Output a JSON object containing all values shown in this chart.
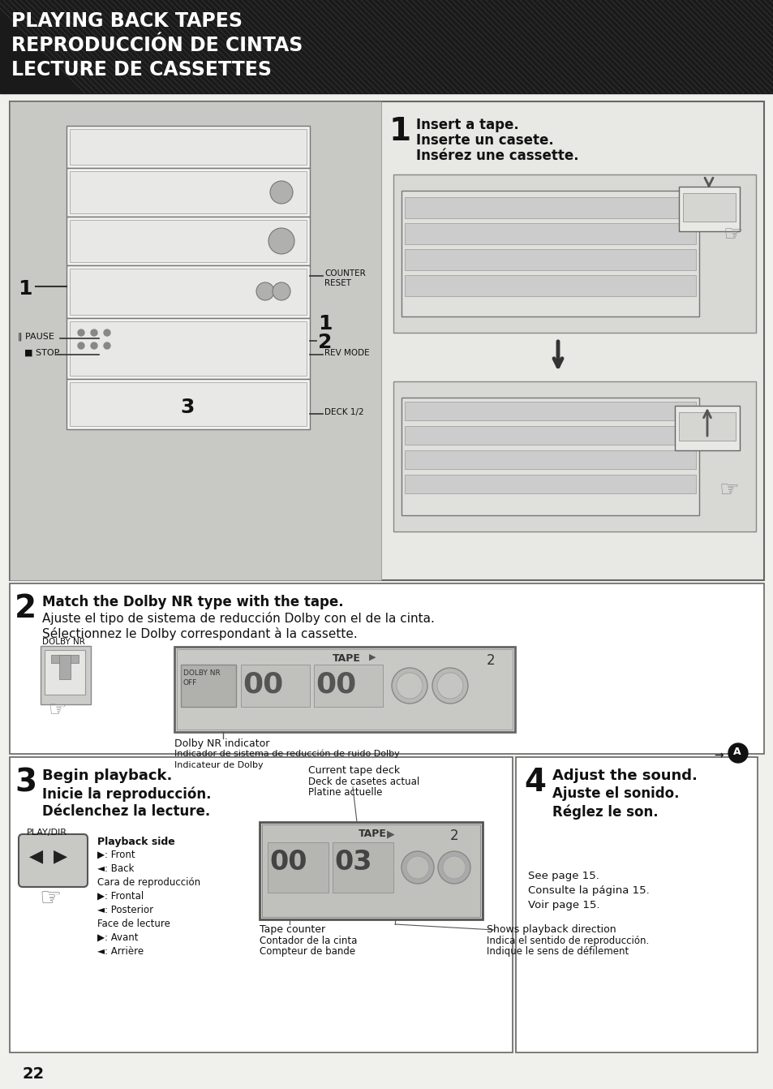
{
  "page_bg": "#f0f0ec",
  "header_bg": "#1a1a1a",
  "header_text_color": "#ffffff",
  "header_lines": [
    "PLAYING BACK TAPES",
    "REPRODUCCIÓN DE CINTAS",
    "LECTURE DE CASSETTES"
  ],
  "page_number": "22",
  "step1_title_line1": "Insert a tape.",
  "step1_title_line2": "Inserte un casete.",
  "step1_title_line3": "Insérez une cassette.",
  "step2_title": "Match the Dolby NR type with the tape.",
  "step2_line2": "Ajuste el tipo de sistema de reducción Dolby con el de la cinta.",
  "step2_line3": "Sélectionnez le Dolby correspondant à la cassette.",
  "step2_label1": "Dolby NR indicator",
  "step2_label2": "Indicador de sistema de reducción de ruido Dolby",
  "step2_label3": "Indicateur de Dolby",
  "step3_title_bold": "Begin playback.",
  "step3_line2": "Inicie la reproducción.",
  "step3_line3": "Déclenchez la lecture.",
  "step3_label_top": "Current tape deck",
  "step3_label_top2": "Deck de casetes actual",
  "step3_label_top3": "Platine actuelle",
  "step3_playdir_label": "PLAY/DIR",
  "step3_playback_label": "Playback side",
  "step3_pb_lines": [
    "▶: Front",
    "◄: Back",
    "Cara de reproducción",
    "▶: Frontal",
    "◄: Posterior",
    "Face de lecture",
    "▶: Avant",
    "◄: Arrière"
  ],
  "step3_tape_counter": "Tape counter",
  "step3_tape_counter2": "Contador de la cinta",
  "step3_tape_counter3": "Compteur de bande",
  "step3_shows_dir": "Shows playback direction",
  "step3_shows_dir2": "Indica el sentido de reproducción.",
  "step3_shows_dir3": "Indique le sens de défilement",
  "step4_title_bold": "Adjust the sound.",
  "step4_line2": "Ajuste el sonido.",
  "step4_line3": "Réglez le son.",
  "step4_see": "See page 15.",
  "step4_see2": "Consulte la página 15.",
  "step4_see3": "Voir page 15.",
  "counter_reset": "COUNTER\nRESET",
  "rev_mode": "REV MODE",
  "deck12": "DECK 1/2",
  "pause_label": "‖ PAUSE",
  "stop_label": "■ STOP",
  "dolby_nr_label": "DOLBY NR",
  "tape_label": "TAPE",
  "dolby_nr_off": "DOLBY NR\nOFF"
}
